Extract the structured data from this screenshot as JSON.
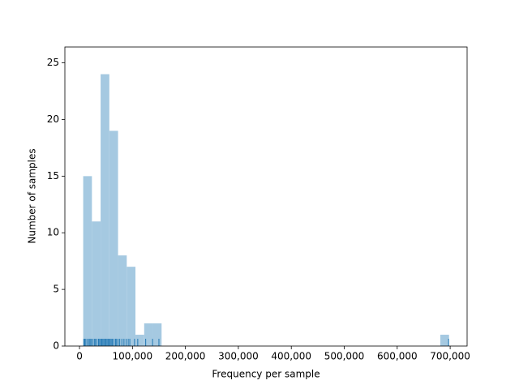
{
  "chart_data": {
    "type": "histogram",
    "xlabel": "Frequency per sample",
    "ylabel": "Number of samples",
    "bins": [
      7000,
      23450,
      39900,
      56350,
      72800,
      89250,
      105700,
      122150,
      138600,
      155050,
      171500,
      187950,
      204400,
      220850,
      237300,
      253750,
      270200,
      286650,
      303100,
      319550,
      336000,
      352450,
      368900,
      385350,
      401800,
      418250,
      434700,
      451150,
      467600,
      484050,
      500500,
      516950,
      533400,
      549850,
      566300,
      582750,
      599200,
      615650,
      632100,
      648550,
      665000,
      681450,
      697900
    ],
    "values": [
      15,
      11,
      24,
      19,
      8,
      7,
      1,
      2,
      2,
      0,
      0,
      0,
      0,
      0,
      0,
      0,
      0,
      0,
      0,
      0,
      0,
      0,
      0,
      0,
      0,
      0,
      0,
      0,
      0,
      0,
      0,
      0,
      0,
      0,
      0,
      0,
      0,
      0,
      0,
      0,
      0,
      1
    ],
    "color": "#a5c9e1",
    "rug": [
      8000,
      10000,
      12000,
      15000,
      18000,
      20000,
      22000,
      25000,
      28000,
      30000,
      33000,
      36000,
      38000,
      40000,
      42000,
      44000,
      46000,
      48000,
      50000,
      52000,
      54000,
      56000,
      58000,
      60000,
      62000,
      65000,
      68000,
      70000,
      73000,
      76000,
      80000,
      84000,
      88000,
      92000,
      95000,
      104000,
      110000,
      125000,
      138000,
      150000,
      697000
    ],
    "rug_color": "#1f77b4",
    "xlim": [
      -27600,
      732000
    ],
    "ylim": [
      0,
      26.4
    ],
    "xticks": [
      {
        "value": 0,
        "label": "0"
      },
      {
        "value": 100000,
        "label": "100,000"
      },
      {
        "value": 200000,
        "label": "200,000"
      },
      {
        "value": 300000,
        "label": "300,000"
      },
      {
        "value": 400000,
        "label": "400,000"
      },
      {
        "value": 500000,
        "label": "500,000"
      },
      {
        "value": 600000,
        "label": "600,000"
      },
      {
        "value": 700000,
        "label": "700,000"
      }
    ],
    "yticks": [
      0,
      5,
      10,
      15,
      20,
      25
    ]
  }
}
